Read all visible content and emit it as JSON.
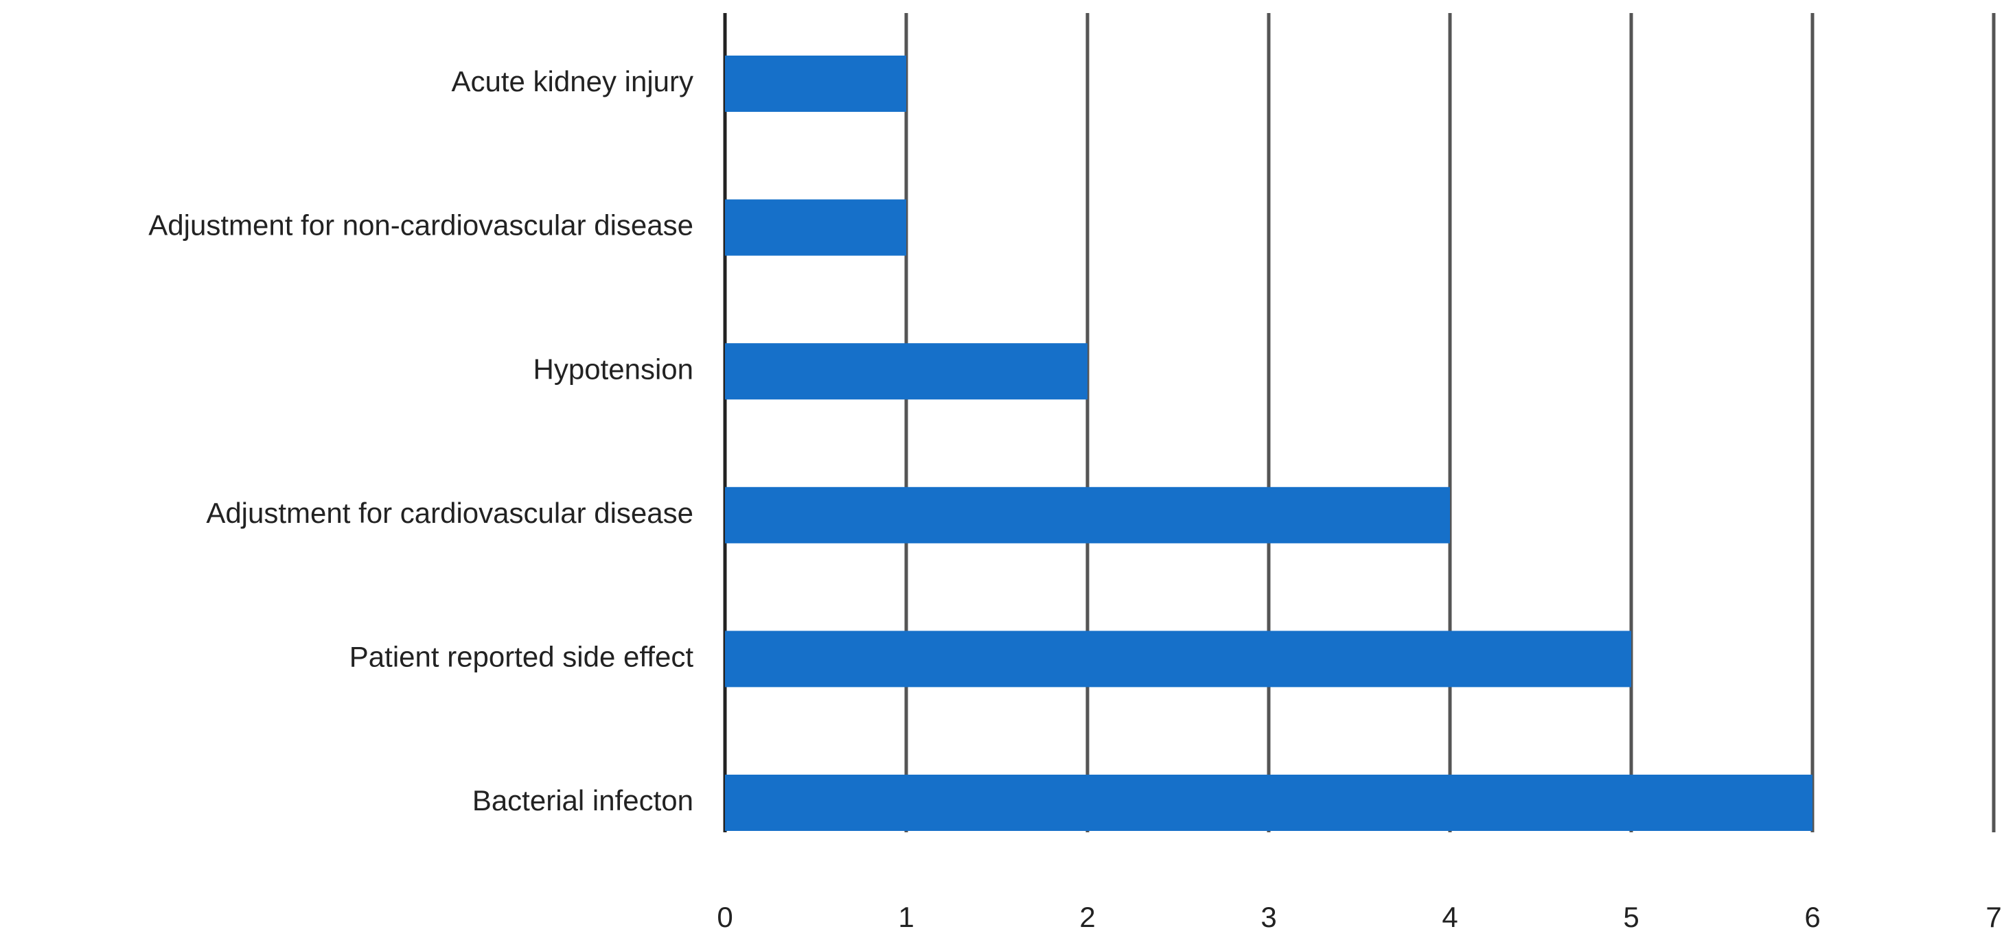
{
  "chart_data": {
    "type": "bar",
    "orientation": "horizontal",
    "categories": [
      "Acute kidney injury",
      "Adjustment for non-cardiovascular disease",
      "Hypotension",
      "Adjustment for cardiovascular disease",
      "Patient reported side effect",
      "Bacterial infecton"
    ],
    "values": [
      1,
      1,
      2,
      4,
      5,
      6
    ],
    "color": "#1670c9",
    "xlim": [
      0,
      7
    ],
    "xticks": [
      0,
      1,
      2,
      3,
      4,
      5,
      6,
      7
    ],
    "grid": true
  }
}
